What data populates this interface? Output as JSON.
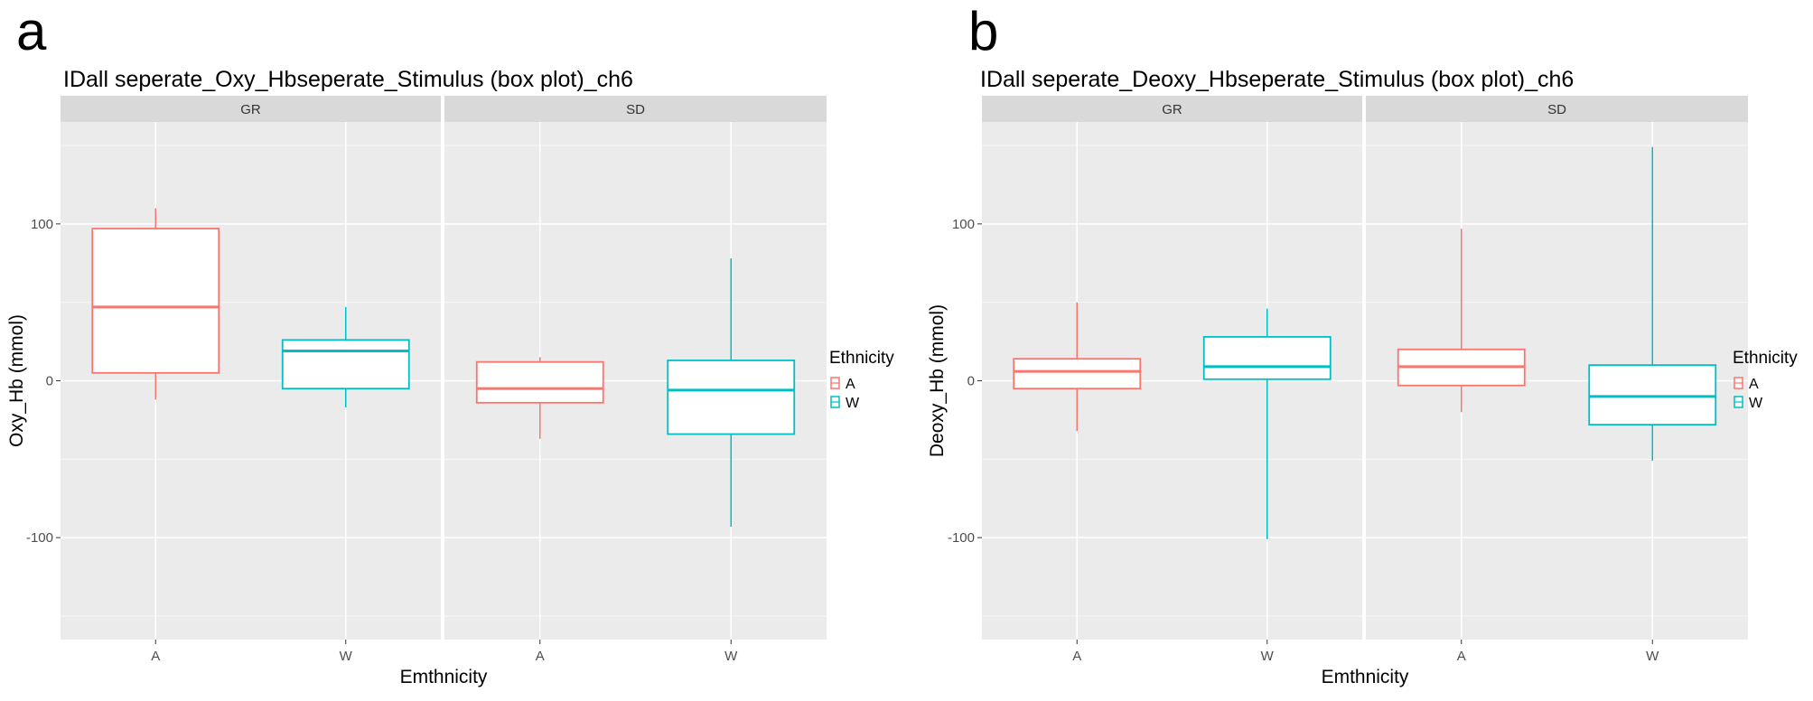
{
  "colors": {
    "A": "#F8766D",
    "W": "#00BFC4",
    "panel_bg": "#EBEBEB",
    "strip_bg": "#D9D9D9",
    "grid": "#FFFFFF"
  },
  "chart_data": [
    {
      "type": "boxplot",
      "panel_label": "a",
      "title": "IDall seperate_Oxy_Hbseperate_Stimulus (box plot)_ch6",
      "xlabel": "Emthnicity",
      "ylabel": "Oxy_Hb (mmol)",
      "ylim": [
        -165,
        165
      ],
      "yticks": [
        -100,
        0,
        100
      ],
      "ytick_labels": [
        "-100",
        "0",
        "100"
      ],
      "legend": {
        "title": "Ethnicity",
        "entries": [
          "A",
          "W"
        ],
        "position": "right"
      },
      "facets": [
        {
          "strip": "GR",
          "categories": [
            "A",
            "W"
          ],
          "boxes": [
            {
              "group": "A",
              "whisker_low": -12,
              "q1": 5,
              "median": 47,
              "q3": 97,
              "whisker_high": 110
            },
            {
              "group": "W",
              "whisker_low": -17,
              "q1": -5,
              "median": 19,
              "q3": 26,
              "whisker_high": 47
            }
          ]
        },
        {
          "strip": "SD",
          "categories": [
            "A",
            "W"
          ],
          "boxes": [
            {
              "group": "A",
              "whisker_low": -37,
              "q1": -14,
              "median": -5,
              "q3": 12,
              "whisker_high": 15
            },
            {
              "group": "W",
              "whisker_low": -93,
              "q1": -34,
              "median": -6,
              "q3": 13,
              "whisker_high": 78
            }
          ]
        }
      ]
    },
    {
      "type": "boxplot",
      "panel_label": "b",
      "title": "IDall seperate_Deoxy_Hbseperate_Stimulus (box plot)_ch6",
      "xlabel": "Emthnicity",
      "ylabel": "Deoxy_Hb (mmol)",
      "ylim": [
        -165,
        165
      ],
      "yticks": [
        -100,
        0,
        100
      ],
      "ytick_labels": [
        "-100",
        "0",
        "100"
      ],
      "legend": {
        "title": "Ethnicity",
        "entries": [
          "A",
          "W"
        ],
        "position": "right"
      },
      "facets": [
        {
          "strip": "GR",
          "categories": [
            "A",
            "W"
          ],
          "boxes": [
            {
              "group": "A",
              "whisker_low": -32,
              "q1": -5,
              "median": 6,
              "q3": 14,
              "whisker_high": 50
            },
            {
              "group": "W",
              "whisker_low": -101,
              "q1": 1,
              "median": 9,
              "q3": 28,
              "whisker_high": 46
            }
          ]
        },
        {
          "strip": "SD",
          "categories": [
            "A",
            "W"
          ],
          "boxes": [
            {
              "group": "A",
              "whisker_low": -20,
              "q1": -3,
              "median": 9,
              "q3": 20,
              "whisker_high": 97
            },
            {
              "group": "W",
              "whisker_low": -51,
              "q1": -28,
              "median": -10,
              "q3": 10,
              "whisker_high": 149
            }
          ]
        }
      ]
    }
  ]
}
